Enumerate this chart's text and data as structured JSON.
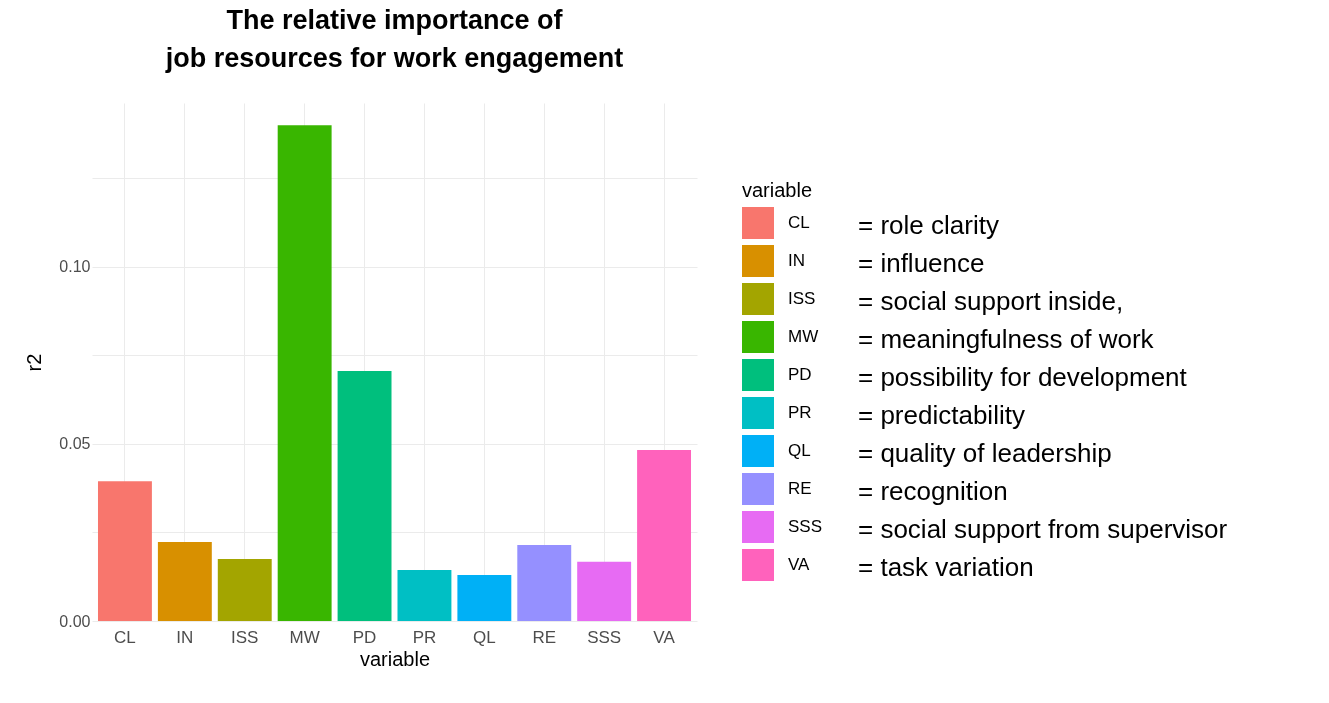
{
  "chart_data": {
    "type": "bar",
    "title": "The relative importance of\njob resources for work engagement",
    "xlabel": "variable",
    "ylabel": "r2",
    "legend_title": "variable",
    "categories": [
      "CL",
      "IN",
      "ISS",
      "MW",
      "PD",
      "PR",
      "QL",
      "RE",
      "SSS",
      "VA"
    ],
    "series": [
      {
        "name": "CL",
        "color": "#f8766d",
        "values": [
          0.0395,
          null,
          null,
          null,
          null,
          null,
          null,
          null,
          null,
          null
        ]
      },
      {
        "name": "IN",
        "color": "#d89000",
        "values": [
          null,
          0.0223,
          null,
          null,
          null,
          null,
          null,
          null,
          null,
          null
        ]
      },
      {
        "name": "ISS",
        "color": "#a3a500",
        "values": [
          null,
          null,
          0.0175,
          null,
          null,
          null,
          null,
          null,
          null,
          null
        ]
      },
      {
        "name": "MW",
        "color": "#39b600",
        "values": [
          null,
          null,
          null,
          0.14,
          null,
          null,
          null,
          null,
          null,
          null
        ]
      },
      {
        "name": "PD",
        "color": "#00bf7d",
        "values": [
          null,
          null,
          null,
          null,
          0.0706,
          null,
          null,
          null,
          null,
          null
        ]
      },
      {
        "name": "PR",
        "color": "#00bfc4",
        "values": [
          null,
          null,
          null,
          null,
          null,
          0.0144,
          null,
          null,
          null,
          null
        ]
      },
      {
        "name": "QL",
        "color": "#00b0f6",
        "values": [
          null,
          null,
          null,
          null,
          null,
          null,
          0.013,
          null,
          null,
          null
        ]
      },
      {
        "name": "RE",
        "color": "#9590ff",
        "values": [
          null,
          null,
          null,
          null,
          null,
          null,
          null,
          0.0215,
          null,
          null
        ]
      },
      {
        "name": "SSS",
        "color": "#e76bf3",
        "values": [
          null,
          null,
          null,
          null,
          null,
          null,
          null,
          null,
          0.0167,
          null
        ]
      },
      {
        "name": "VA",
        "color": "#ff62bc",
        "values": [
          null,
          null,
          null,
          null,
          null,
          null,
          null,
          null,
          null,
          0.0483
        ]
      }
    ],
    "ylim": [
      0,
      0.1463
    ],
    "yticks": [
      {
        "value": 0,
        "label": "0.00"
      },
      {
        "value": 0.025,
        "label": null
      },
      {
        "value": 0.05,
        "label": "0.05"
      },
      {
        "value": 0.075,
        "label": null
      },
      {
        "value": 0.1,
        "label": "0.10"
      },
      {
        "value": 0.125,
        "label": null
      }
    ],
    "grid": true,
    "legend": "right",
    "annotations": [
      "= role clarity",
      "= influence",
      "= social support inside,",
      "= meaningfulness of work",
      "= possibility for development",
      "= predictability",
      "= quality of leadership",
      "= recognition",
      "= social support from supervisor",
      "= task variation"
    ]
  }
}
